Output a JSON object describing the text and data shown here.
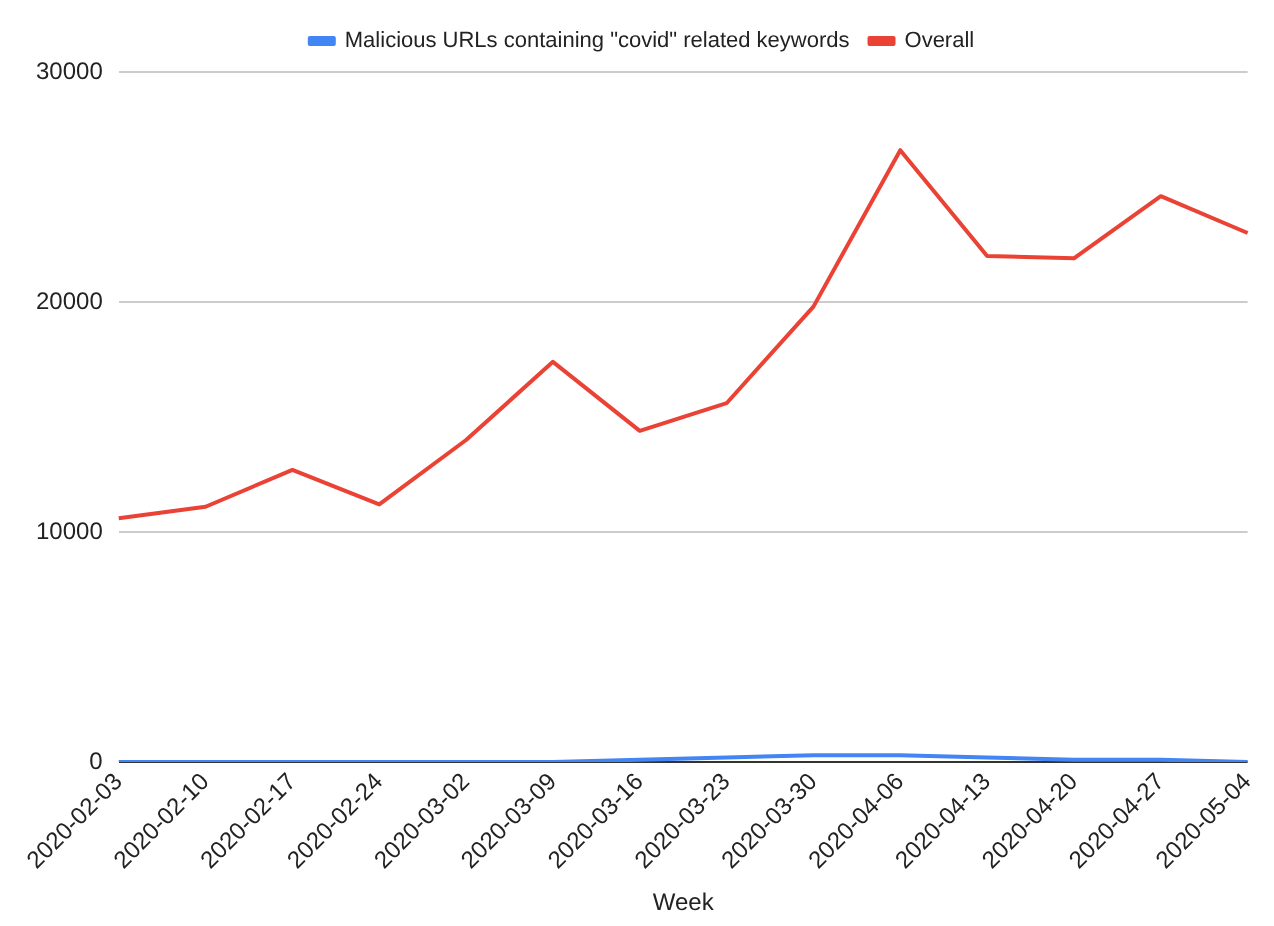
{
  "chart_data": {
    "type": "line",
    "xlabel": "Week",
    "categories": [
      "2020-02-03",
      "2020-02-10",
      "2020-02-17",
      "2020-02-24",
      "2020-03-02",
      "2020-03-09",
      "2020-03-16",
      "2020-03-23",
      "2020-03-30",
      "2020-04-06",
      "2020-04-13",
      "2020-04-20",
      "2020-04-27",
      "2020-05-04"
    ],
    "series": [
      {
        "name": "Malicious URLs containing \"covid\" related keywords",
        "color": "#4285f4",
        "values": [
          0,
          0,
          0,
          0,
          0,
          0,
          100,
          200,
          300,
          300,
          200,
          100,
          100,
          0
        ]
      },
      {
        "name": "Overall",
        "color": "#ea4335",
        "values": [
          10600,
          11100,
          12700,
          11200,
          14000,
          17400,
          14400,
          15600,
          19800,
          26600,
          22000,
          21900,
          24600,
          23000
        ]
      }
    ],
    "ylim": [
      0,
      30000
    ],
    "yticks": [
      0,
      10000,
      20000,
      30000
    ],
    "grid": "y",
    "legend": "top",
    "marker": "none"
  }
}
